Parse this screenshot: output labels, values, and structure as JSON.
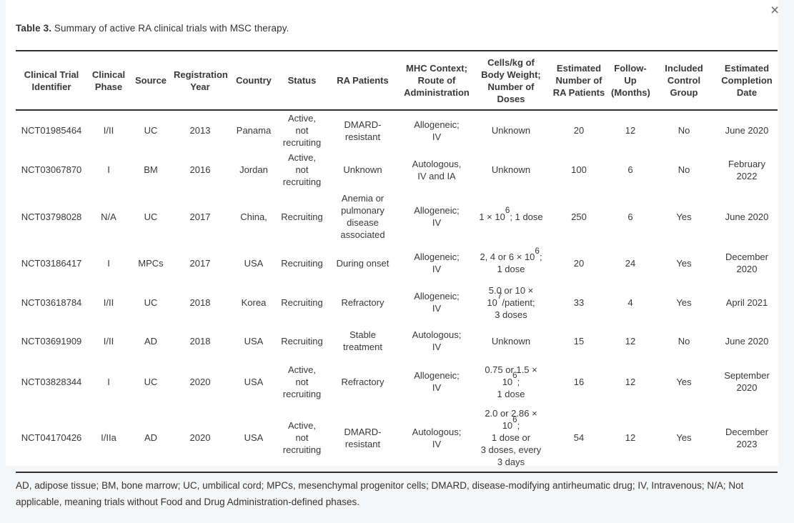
{
  "modal": {
    "close_icon": "×"
  },
  "caption": {
    "label": "Table 3.",
    "text": " Summary of active RA clinical trials with MSC therapy."
  },
  "table": {
    "columns": [
      "Clinical Trial\nIdentifier",
      "Clinical\nPhase",
      "Source",
      "Registration\nYear",
      "Country",
      "Status",
      "RA Patients",
      "MHC Context;\nRoute of\nAdministration",
      "Cells/kg of\nBody Weight;\nNumber of\nDoses",
      "Estimated\nNumber of\nRA Patients",
      "Follow-\nUp\n(Months)",
      "Included\nControl\nGroup",
      "Estimated\nCompletion\nDate"
    ],
    "rows": [
      [
        "NCT01985464",
        "I/II",
        "UC",
        "2013",
        "Panama",
        "Active, not\nrecruiting",
        "DMARD-\nresistant",
        "Allogeneic;\nIV",
        "Unknown",
        "20",
        "12",
        "No",
        "June 2020"
      ],
      [
        "NCT03067870",
        "I",
        "BM",
        "2016",
        "Jordan",
        "Active, not\nrecruiting",
        "Unknown",
        "Autologous,\nIV and IA",
        "Unknown",
        "100",
        "6",
        "No",
        "February\n2022"
      ],
      [
        "NCT03798028",
        "N/A",
        "UC",
        "2017",
        "China,",
        "Recruiting",
        "Anemia or\npulmonary\ndisease\nassociated",
        "Allogeneic;\nIV",
        "1 × 10^6^; 1 dose",
        "250",
        "6",
        "Yes",
        "June 2020"
      ],
      [
        "NCT03186417",
        "I",
        "MPCs",
        "2017",
        "USA",
        "Recruiting",
        "During onset",
        "Allogeneic;\nIV",
        "2, 4 or 6 × 10^6^;\n1 dose",
        "20",
        "24",
        "Yes",
        "December\n2020"
      ],
      [
        "NCT03618784",
        "I/II",
        "UC",
        "2018",
        "Korea",
        "Recruiting",
        "Refractory",
        "Allogeneic;\nIV",
        "5.0 or 10 ×\n10^7^/patient;\n3 doses",
        "33",
        "4",
        "Yes",
        "April 2021"
      ],
      [
        "NCT03691909",
        "I/II",
        "AD",
        "2018",
        "USA",
        "Recruiting",
        "Stable\ntreatment",
        "Autologous;\nIV",
        "Unknown",
        "15",
        "12",
        "No",
        "June 2020"
      ],
      [
        "NCT03828344",
        "I",
        "UC",
        "2020",
        "USA",
        "Active, not\nrecruiting",
        "Refractory",
        "Allogeneic;\nIV",
        "0.75 or 1.5 ×\n10^6^;\n1 dose",
        "16",
        "12",
        "Yes",
        "September\n2020"
      ],
      [
        "NCT04170426",
        "I/IIa",
        "AD",
        "2020",
        "USA",
        "Active, not\nrecruiting",
        "DMARD-\nresistant",
        "Autologous;\nIV",
        "2.0 or 2.86 ×\n10^6^;\n1 dose or\n3 doses, every\n3 days",
        "54",
        "12",
        "Yes",
        "December\n2023"
      ]
    ]
  },
  "footnote": "AD, adipose tissue; BM, bone marrow; UC, umbilical cord; MPCs, mesenchymal progenitor cells; DMARD, disease-modifying antirheumatic drug; IV, Intravenous; N/A; Not applicable, meaning trials without Food and Drug Administration-defined phases.",
  "colors": {
    "page_bg": "#f5f6f7",
    "card_bg": "#ffffff",
    "rule": "#2f2f2f",
    "text": "#333333"
  }
}
